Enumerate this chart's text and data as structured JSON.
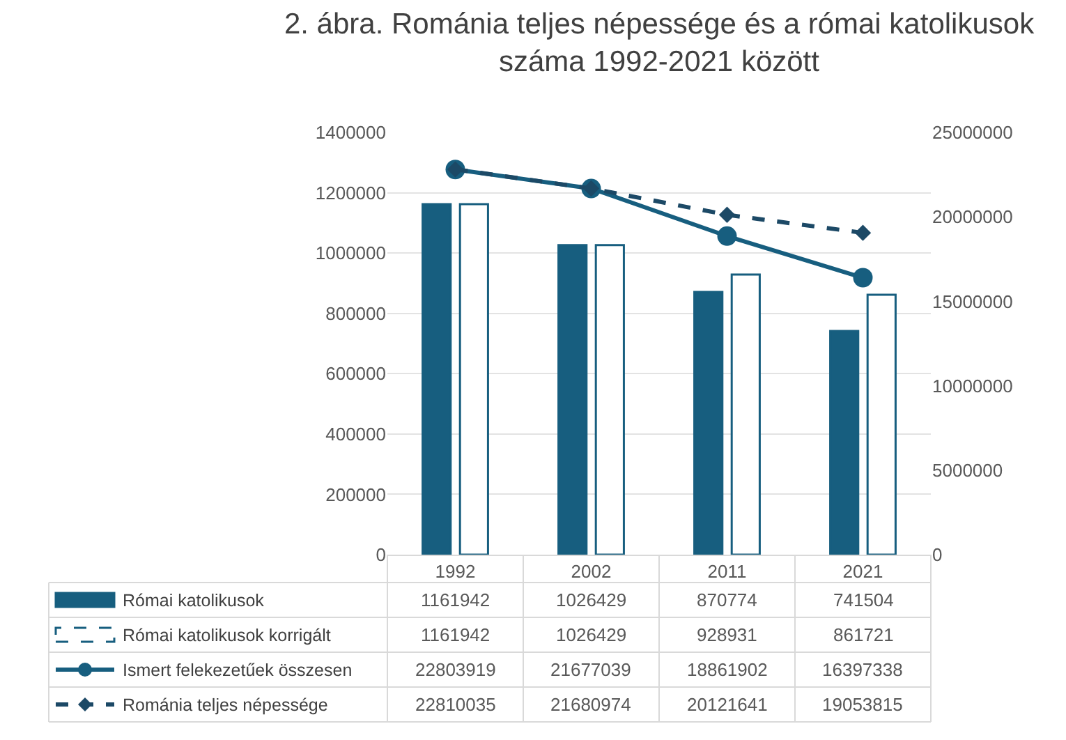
{
  "chart_data": {
    "type": "bar",
    "title": "2. ábra. Románia teljes népessége és a római katolikusok száma 1992-2021 között",
    "categories": [
      "1992",
      "2002",
      "2011",
      "2021"
    ],
    "series": [
      {
        "name": "Római katolikusok",
        "color": "#175e7f",
        "values": [
          1161942,
          1026429,
          870774,
          741504
        ]
      },
      {
        "name": "Római katolikusok korrigált",
        "color": "#175e7f",
        "line_style": "dashed",
        "values": [
          1161942,
          1026429,
          928931,
          861721
        ]
      },
      {
        "name": "Ismert felekezetűek összesen",
        "type": "line",
        "axis": "y2",
        "color": "#175e7f",
        "marker": "circle",
        "line_style": "solid",
        "values": [
          22803919,
          21677039,
          18861902,
          16397338
        ]
      },
      {
        "name": "Románia teljes népessége",
        "type": "line",
        "axis": "y2",
        "color": "#1c4966",
        "marker": "diamond",
        "line_style": "dashed",
        "values": [
          22810035,
          21680974,
          20121641,
          19053815
        ]
      }
    ],
    "ylim": [
      0,
      1400000
    ],
    "yticks": [
      0,
      200000,
      400000,
      600000,
      800000,
      1000000,
      1200000,
      1400000
    ],
    "y2lim": [
      0,
      25000000
    ],
    "y2ticks": [
      0,
      5000000,
      10000000,
      15000000,
      20000000,
      25000000
    ],
    "grid": "y",
    "legend": "bottom",
    "data_labels": true
  }
}
